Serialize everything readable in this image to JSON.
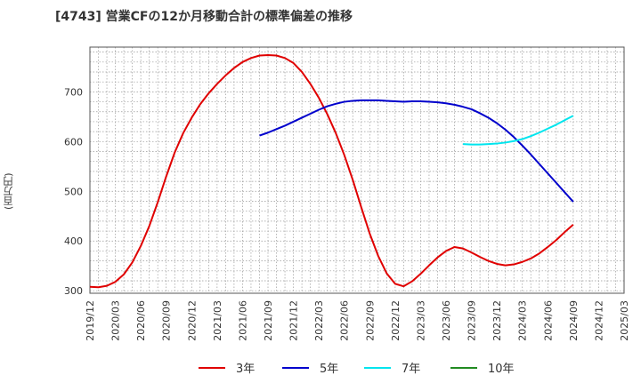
{
  "title": "[4743]  営業CFの12か月移動合計の標準偏差の推移",
  "chart_data": {
    "type": "line",
    "title": "[4743]  営業CFの12か月移動合計の標準偏差の推移",
    "ylabel": "(百万円)",
    "xlabel": "",
    "ylim": [
      295,
      790
    ],
    "yticks": [
      300,
      400,
      500,
      600,
      700
    ],
    "x_ticks": [
      "2019/12",
      "2020/03",
      "2020/06",
      "2020/09",
      "2020/12",
      "2021/03",
      "2021/06",
      "2021/09",
      "2021/12",
      "2022/03",
      "2022/06",
      "2022/09",
      "2022/12",
      "2023/03",
      "2023/06",
      "2023/09",
      "2023/12",
      "2024/03",
      "2024/06",
      "2024/09",
      "2024/12",
      "2025/03"
    ],
    "grid": true,
    "legend_position": "bottom",
    "series": [
      {
        "name": "3年",
        "color": "#e00000",
        "x": [
          "2019/12",
          "2020/01",
          "2020/02",
          "2020/03",
          "2020/04",
          "2020/05",
          "2020/06",
          "2020/07",
          "2020/08",
          "2020/09",
          "2020/10",
          "2020/11",
          "2020/12",
          "2021/01",
          "2021/02",
          "2021/03",
          "2021/04",
          "2021/05",
          "2021/06",
          "2021/07",
          "2021/08",
          "2021/09",
          "2021/10",
          "2021/11",
          "2021/12",
          "2022/01",
          "2022/02",
          "2022/03",
          "2022/04",
          "2022/05",
          "2022/06",
          "2022/07",
          "2022/08",
          "2022/09",
          "2022/10",
          "2022/11",
          "2022/12",
          "2023/01",
          "2023/02",
          "2023/03",
          "2023/04",
          "2023/05",
          "2023/06",
          "2023/07",
          "2023/08",
          "2023/09",
          "2023/10",
          "2023/11",
          "2023/12",
          "2024/01",
          "2024/02",
          "2024/03",
          "2024/04",
          "2024/05",
          "2024/06",
          "2024/07",
          "2024/08",
          "2024/09"
        ],
        "values": [
          308,
          307,
          310,
          318,
          333,
          357,
          390,
          430,
          478,
          530,
          578,
          617,
          648,
          675,
          697,
          716,
          733,
          748,
          760,
          768,
          773,
          774,
          773,
          768,
          758,
          740,
          716,
          688,
          655,
          617,
          573,
          523,
          468,
          415,
          370,
          335,
          314,
          309,
          319,
          334,
          351,
          367,
          380,
          388,
          385,
          377,
          368,
          360,
          354,
          351,
          353,
          358,
          365,
          375,
          388,
          402,
          418,
          433
        ]
      },
      {
        "name": "5年",
        "color": "#0000cc",
        "x": [
          "2021/08",
          "2021/09",
          "2021/10",
          "2021/11",
          "2021/12",
          "2022/01",
          "2022/02",
          "2022/03",
          "2022/04",
          "2022/05",
          "2022/06",
          "2022/07",
          "2022/08",
          "2022/09",
          "2022/10",
          "2022/11",
          "2022/12",
          "2023/01",
          "2023/02",
          "2023/03",
          "2023/04",
          "2023/05",
          "2023/06",
          "2023/07",
          "2023/08",
          "2023/09",
          "2023/10",
          "2023/11",
          "2023/12",
          "2024/01",
          "2024/02",
          "2024/03",
          "2024/04",
          "2024/05",
          "2024/06",
          "2024/07",
          "2024/08",
          "2024/09"
        ],
        "values": [
          612,
          618,
          625,
          632,
          640,
          648,
          656,
          664,
          671,
          676,
          680,
          682,
          683,
          683,
          683,
          682,
          681,
          680,
          681,
          681,
          680,
          679,
          677,
          674,
          670,
          665,
          657,
          648,
          637,
          624,
          609,
          592,
          574,
          555,
          536,
          517,
          498,
          479
        ]
      },
      {
        "name": "7年",
        "color": "#00e5ee",
        "x": [
          "2023/08",
          "2023/09",
          "2023/10",
          "2023/11",
          "2023/12",
          "2024/01",
          "2024/02",
          "2024/03",
          "2024/04",
          "2024/05",
          "2024/06",
          "2024/07",
          "2024/08",
          "2024/09"
        ],
        "values": [
          595,
          594,
          594,
          595,
          596,
          598,
          601,
          605,
          611,
          618,
          626,
          634,
          643,
          652
        ]
      },
      {
        "name": "10年",
        "color": "#228b22",
        "x": [],
        "values": []
      }
    ]
  }
}
